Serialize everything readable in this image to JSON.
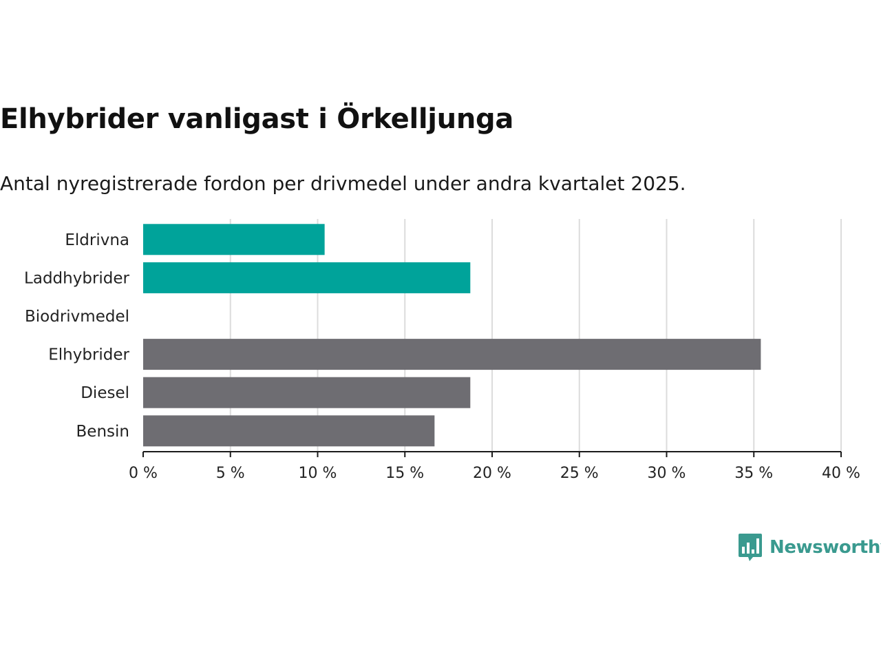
{
  "chart_data": {
    "type": "bar",
    "orientation": "horizontal",
    "title": "Elhybrider vanligast i Örkelljunga",
    "subtitle": "Antal nyregistrerade fordon per drivmedel under andra kvartalet 2025.",
    "categories": [
      "Eldrivna",
      "Laddhybrider",
      "Biodrivmedel",
      "Elhybrider",
      "Diesel",
      "Bensin"
    ],
    "values": [
      10.4,
      18.75,
      0,
      35.4,
      18.75,
      16.7
    ],
    "colors": [
      "#00a39a",
      "#00a39a",
      "#00a39a",
      "#6e6d72",
      "#6e6d72",
      "#6e6d72"
    ],
    "xlim": [
      0,
      40
    ],
    "ticks": [
      0,
      5,
      10,
      15,
      20,
      25,
      30,
      35,
      40
    ],
    "tick_labels": [
      "0 %",
      "5 %",
      "10 %",
      "15 %",
      "20 %",
      "25 %",
      "30 %",
      "35 %",
      "40 %"
    ],
    "xlabel": "",
    "ylabel": "",
    "grid": true
  },
  "brand": {
    "name": "Newsworthy",
    "color": "#3a9a8f",
    "icon": "bar-chart-speech-bubble-icon"
  }
}
